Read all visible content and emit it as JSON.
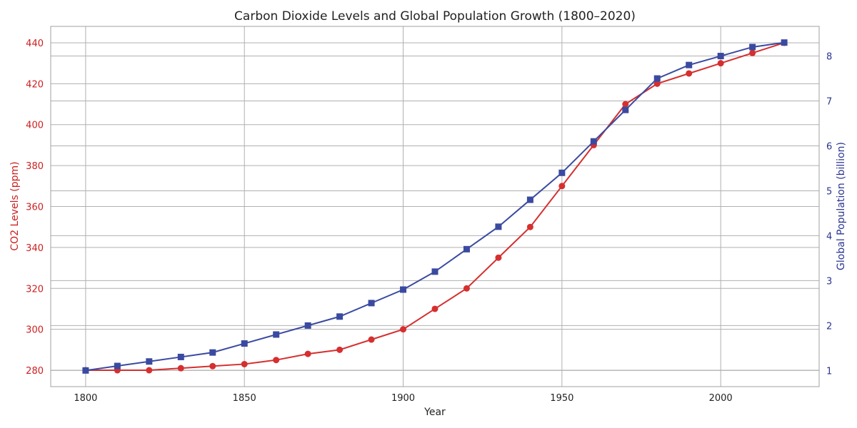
{
  "chart_data": {
    "type": "line",
    "title": "Carbon Dioxide Levels and Global Population Growth (1800–2020)",
    "xlabel": "Year",
    "ylabel_left": "CO2 Levels (ppm)",
    "ylabel_right": "Global Population (billion)",
    "x": [
      1800,
      1810,
      1820,
      1830,
      1840,
      1850,
      1860,
      1870,
      1880,
      1890,
      1900,
      1910,
      1920,
      1930,
      1940,
      1950,
      1960,
      1970,
      1980,
      1990,
      2000,
      2010,
      2020
    ],
    "xlim": [
      1789,
      2031
    ],
    "xticks": [
      1800,
      1850,
      1900,
      1950,
      2000
    ],
    "ylim_left": [
      272,
      448
    ],
    "yticks_left": [
      280,
      300,
      320,
      340,
      360,
      380,
      400,
      420,
      440
    ],
    "ylim_right": [
      0.64,
      8.66
    ],
    "yticks_right": [
      1,
      2,
      3,
      4,
      5,
      6,
      7,
      8
    ],
    "grid": true,
    "series": [
      {
        "name": "CO2 Levels (ppm)",
        "axis": "left",
        "color": "#d62f2f",
        "marker": "circle",
        "values": [
          280,
          280,
          280,
          281,
          282,
          283,
          285,
          288,
          290,
          295,
          300,
          310,
          320,
          335,
          350,
          370,
          390,
          410,
          420,
          425,
          430,
          435,
          440
        ]
      },
      {
        "name": "Global Population (billion)",
        "axis": "right",
        "color": "#3a4aa0",
        "marker": "square",
        "values": [
          1.0,
          1.1,
          1.2,
          1.3,
          1.4,
          1.6,
          1.8,
          2.0,
          2.2,
          2.5,
          2.8,
          3.2,
          3.7,
          4.2,
          4.8,
          5.4,
          6.1,
          6.8,
          7.5,
          7.8,
          8.0,
          8.2,
          8.3
        ]
      }
    ],
    "colors": {
      "left_axis": "#cc1f1f",
      "right_axis": "#2a3590",
      "text": "#222222"
    }
  }
}
